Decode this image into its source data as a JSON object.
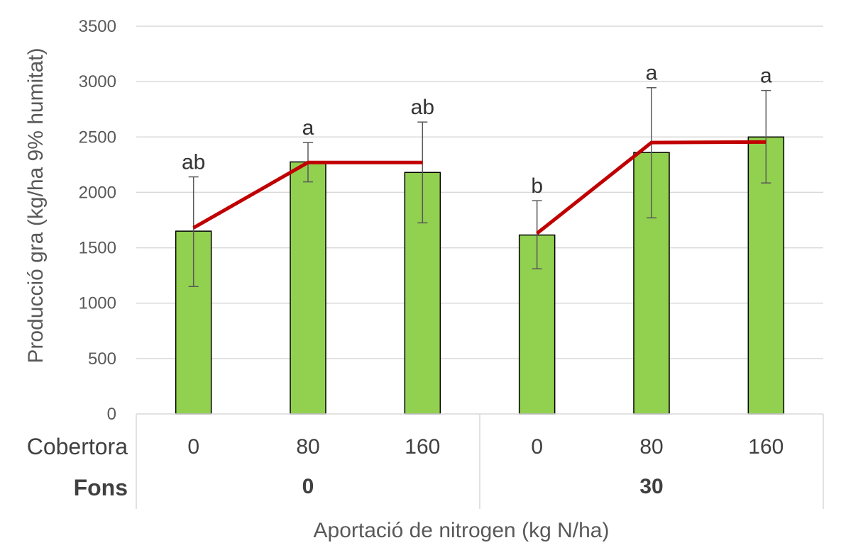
{
  "chart_data": {
    "type": "bar",
    "ylabel": "Producció gra (kg/ha 9% humitat)",
    "xlabel": "Aportació de nitrogen (kg N/ha)",
    "ylim": [
      0,
      3500
    ],
    "yticks": [
      0,
      500,
      1000,
      1500,
      2000,
      2500,
      3000,
      3500
    ],
    "grid": true,
    "row_labels": {
      "cobertora": "Cobertora",
      "fons": "Fons"
    },
    "groups": [
      {
        "label": "0",
        "categories": [
          "0",
          "80",
          "160"
        ]
      },
      {
        "label": "30",
        "categories": [
          "0",
          "80",
          "160"
        ]
      }
    ],
    "bars": [
      {
        "cobertora": "0",
        "fons": "0",
        "value": 1650,
        "err_low": 1150,
        "err_high": 2140,
        "letter": "ab"
      },
      {
        "cobertora": "80",
        "fons": "0",
        "value": 2275,
        "err_low": 2095,
        "err_high": 2450,
        "letter": "a"
      },
      {
        "cobertora": "160",
        "fons": "0",
        "value": 2180,
        "err_low": 1725,
        "err_high": 2635,
        "letter": "ab"
      },
      {
        "cobertora": "0",
        "fons": "30",
        "value": 1615,
        "err_low": 1310,
        "err_high": 1925,
        "letter": "b"
      },
      {
        "cobertora": "80",
        "fons": "30",
        "value": 2360,
        "err_low": 1770,
        "err_high": 2945,
        "letter": "a"
      },
      {
        "cobertora": "160",
        "fons": "30",
        "value": 2500,
        "err_low": 2085,
        "err_high": 2920,
        "letter": "a"
      }
    ],
    "fit_lines": [
      {
        "points": [
          [
            0,
            1680
          ],
          [
            80,
            2270
          ],
          [
            160,
            2270
          ]
        ]
      },
      {
        "points": [
          [
            0,
            1630
          ],
          [
            80,
            2450
          ],
          [
            160,
            2455
          ]
        ]
      }
    ],
    "colors": {
      "bar": "#92d050",
      "bar_edge": "#000000",
      "fit_line": "#c00000",
      "grid": "#d9d9d9",
      "error_bar": "#595959"
    }
  }
}
